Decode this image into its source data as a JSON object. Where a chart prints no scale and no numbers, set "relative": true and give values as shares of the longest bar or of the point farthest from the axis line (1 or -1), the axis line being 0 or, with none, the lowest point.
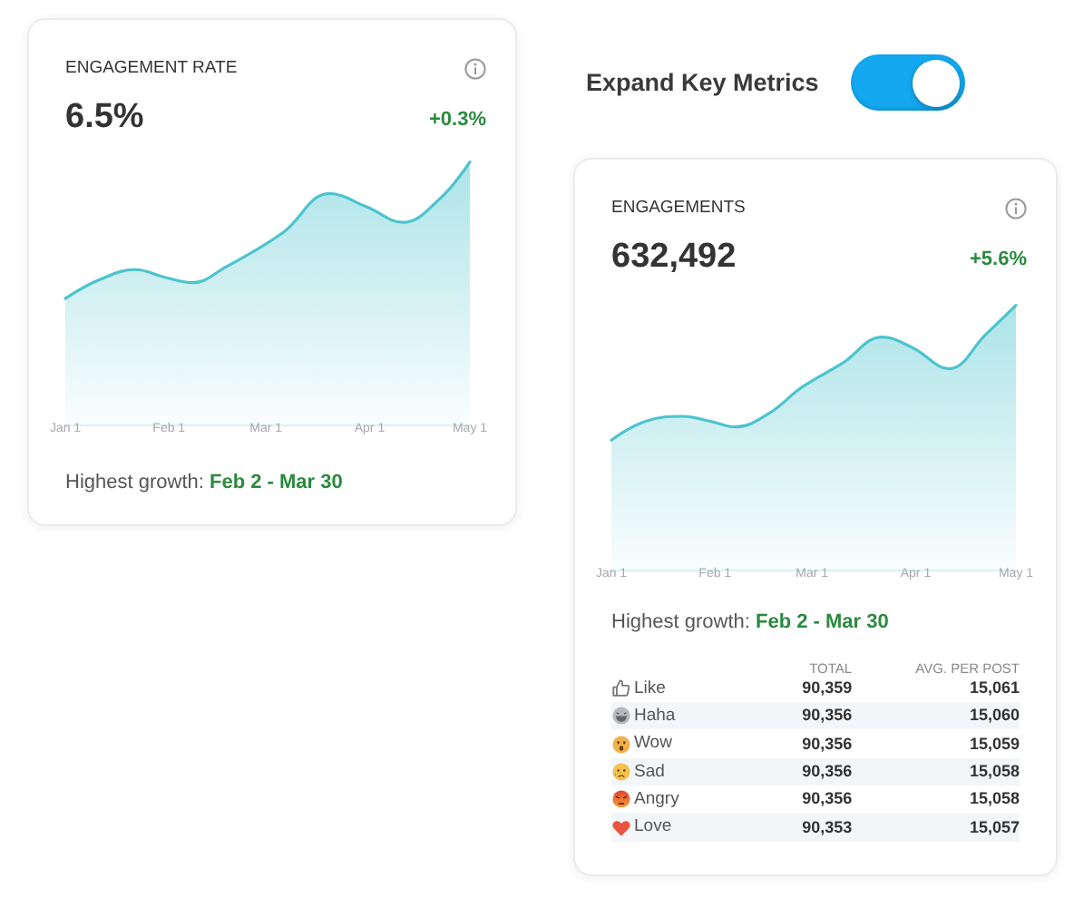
{
  "chart_data": [
    {
      "type": "area",
      "title": "ENGAGEMENT RATE",
      "subtitle": "6.5%",
      "annotations": [
        "+0.3%",
        "Highest growth:",
        "Feb 2 - Mar 30"
      ],
      "relative": true,
      "color": "#4cc4ce",
      "x": [
        "--01-01",
        "--01-11",
        "--01-22",
        "--01-31",
        "--02-08",
        "--02-18",
        "--03-06",
        "--03-20",
        "--03-31",
        "--04-11",
        "--04-22",
        "--05-01"
      ],
      "values": [
        0.48,
        0.55,
        0.59,
        0.56,
        0.54,
        0.6,
        0.73,
        0.88,
        0.83,
        0.77,
        0.86,
        1
      ],
      "xlim": [
        "--01-01",
        "--05-01"
      ],
      "xticks": [
        {
          "value": "--01-01",
          "label": "Jan 1"
        },
        {
          "value": "--02-01",
          "label": "Feb 1"
        },
        {
          "value": "--03-01",
          "label": "Mar 1"
        },
        {
          "value": "--04-01",
          "label": "Apr 1"
        },
        {
          "value": "--05-01",
          "label": "May 1"
        }
      ]
    },
    {
      "type": "other",
      "title": "Expand Key Metrics"
    },
    {
      "type": "area",
      "title": "ENGAGEMENTS",
      "subtitle": "632,492",
      "annotations": [
        "+5.6%",
        "Highest growth:",
        "Feb 2 - Mar 30"
      ],
      "relative": true,
      "color": "#4cc4ce",
      "x": [
        "--01-01",
        "--01-11",
        "--01-22",
        "--01-31",
        "--02-07",
        "--02-17",
        "--02-27",
        "--03-10",
        "--03-22",
        "--03-31",
        "--04-11",
        "--04-22",
        "--05-01"
      ],
      "values": [
        0.49,
        0.56,
        0.58,
        0.56,
        0.54,
        0.59,
        0.69,
        0.78,
        0.88,
        0.84,
        0.76,
        0.89,
        1
      ],
      "xlim": [
        "--01-01",
        "--05-01"
      ],
      "xticks": [
        {
          "value": "--01-01",
          "label": "Jan 1"
        },
        {
          "value": "--02-01",
          "label": "Feb 1"
        },
        {
          "value": "--03-01",
          "label": "Mar 1"
        },
        {
          "value": "--04-01",
          "label": "Apr 1"
        },
        {
          "value": "--05-01",
          "label": "May 1"
        }
      ]
    },
    {
      "type": "other",
      "categories": [
        "Like",
        "Haha",
        "Wow",
        "Sad",
        "Angry",
        "Love"
      ],
      "series": [
        {
          "name": "TOTAL",
          "values": [
            90359,
            90356,
            90356,
            90356,
            90356,
            90353
          ],
          "value_labels": [
            "90,359",
            "90,356",
            "90,356",
            "90,356",
            "90,356",
            "90,353"
          ]
        },
        {
          "name": "AVG. PER POST",
          "values": [
            15061,
            15060,
            15059,
            15058,
            15058,
            15057
          ],
          "value_labels": [
            "15,061",
            "15,060",
            "15,059",
            "15,058",
            "15,058",
            "15,057"
          ]
        }
      ]
    }
  ]
}
